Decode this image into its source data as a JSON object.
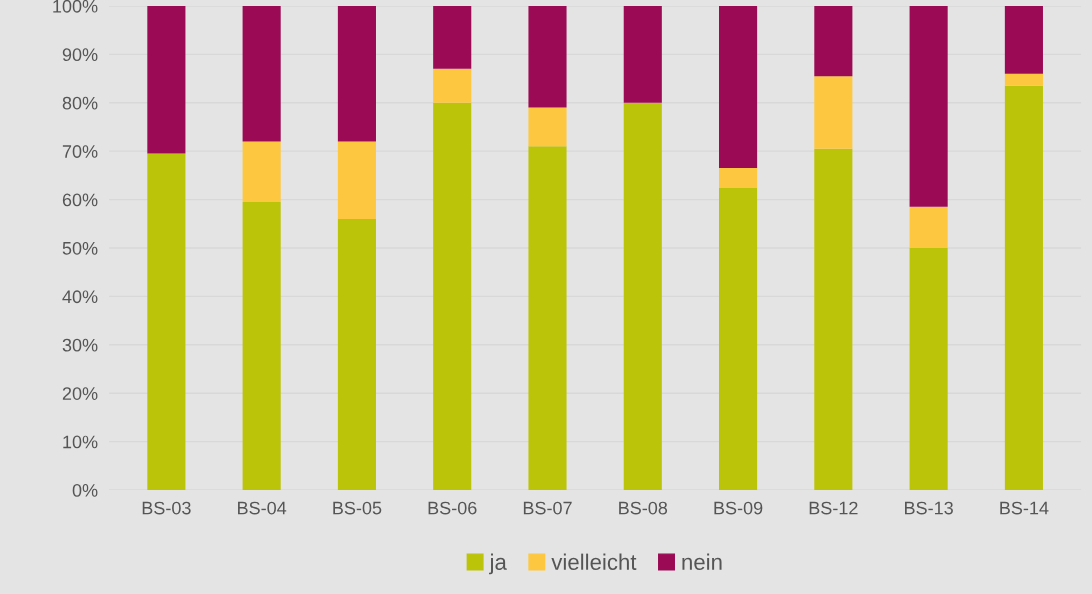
{
  "chart_data": {
    "type": "bar",
    "stacked": true,
    "categories": [
      "BS-03",
      "BS-04",
      "BS-05",
      "BS-06",
      "BS-07",
      "BS-08",
      "BS-09",
      "BS-12",
      "BS-13",
      "BS-14"
    ],
    "series": [
      {
        "name": "ja",
        "color": "#bcc40a",
        "values": [
          69.5,
          59.5,
          56,
          80,
          71,
          80,
          62.5,
          70.5,
          50,
          83.5
        ]
      },
      {
        "name": "vielleicht",
        "color": "#fdc840",
        "values": [
          0,
          12.5,
          16,
          7,
          8,
          0,
          4,
          15,
          8.5,
          2.5
        ]
      },
      {
        "name": "nein",
        "color": "#9b0a55",
        "values": [
          30.5,
          28,
          28,
          13,
          21,
          20,
          33.5,
          14.5,
          41.5,
          14
        ]
      }
    ],
    "ylim": [
      0,
      100
    ],
    "yticks": [
      {
        "value": 0,
        "label": "0%"
      },
      {
        "value": 10,
        "label": "10%"
      },
      {
        "value": 20,
        "label": "20%"
      },
      {
        "value": 30,
        "label": "30%"
      },
      {
        "value": 40,
        "label": "40%"
      },
      {
        "value": 50,
        "label": "50%"
      },
      {
        "value": 60,
        "label": "60%"
      },
      {
        "value": 70,
        "label": "70%"
      },
      {
        "value": 80,
        "label": "80%"
      },
      {
        "value": 90,
        "label": "90%"
      },
      {
        "value": 100,
        "label": "100%"
      }
    ],
    "grid": "y",
    "legend": "bottom"
  }
}
